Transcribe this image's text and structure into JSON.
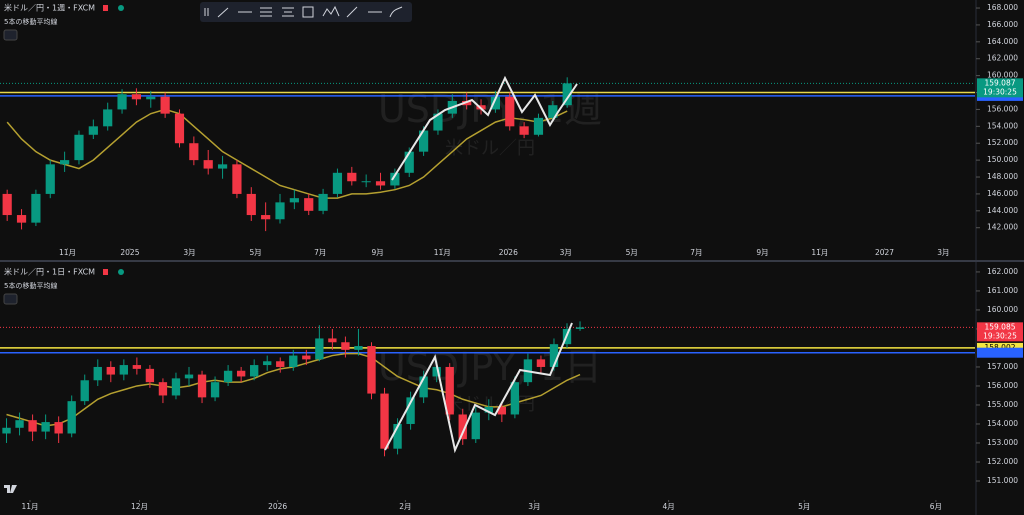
{
  "chart_data": [
    {
      "type": "candlestick",
      "title": "米ドル／円・1週・FXCM",
      "indicator": "5本の移動平均線",
      "watermark": "USDJPY, 1週",
      "watermark_sub": "米ドル／円",
      "up_color": "#089981",
      "down_color": "#f23645",
      "xlim": [
        -0.5,
        67.4
      ],
      "ylim": [
        139.6,
        168.95
      ],
      "yticks": [
        {
          "value": 168,
          "label": "168.000"
        },
        {
          "value": 166,
          "label": "166.000"
        },
        {
          "value": 164,
          "label": "164.000"
        },
        {
          "value": 162,
          "label": "162.000"
        },
        {
          "value": 160,
          "label": "160.000"
        },
        {
          "value": 158,
          "label": "158.000"
        },
        {
          "value": 156,
          "label": "156.000"
        },
        {
          "value": 154,
          "label": "154.000"
        },
        {
          "value": 152,
          "label": "152.000"
        },
        {
          "value": 150,
          "label": "150.000"
        },
        {
          "value": 148,
          "label": "148.000"
        },
        {
          "value": 146,
          "label": "146.000"
        },
        {
          "value": 144,
          "label": "144.000"
        },
        {
          "value": 142,
          "label": "142.000"
        }
      ],
      "xticks": [
        {
          "value": 4.2,
          "label": "11月"
        },
        {
          "value": 8.55,
          "label": "2025"
        },
        {
          "value": 12.7,
          "label": "3月"
        },
        {
          "value": 17.3,
          "label": "5月"
        },
        {
          "value": 21.8,
          "label": "7月"
        },
        {
          "value": 25.8,
          "label": "9月"
        },
        {
          "value": 30.3,
          "label": "11月"
        },
        {
          "value": 34.9,
          "label": "2026"
        },
        {
          "value": 38.9,
          "label": "3月"
        },
        {
          "value": 43.5,
          "label": "5月"
        },
        {
          "value": 48.0,
          "label": "7月"
        },
        {
          "value": 52.6,
          "label": "9月"
        },
        {
          "value": 56.6,
          "label": "11月"
        },
        {
          "value": 61.1,
          "label": "2027"
        },
        {
          "value": 65.2,
          "label": "3月"
        }
      ],
      "ohlc": [
        [
          146,
          146.5,
          142.8,
          143.5
        ],
        [
          143.5,
          144.2,
          141.8,
          142.6
        ],
        [
          142.6,
          146.5,
          142.2,
          146
        ],
        [
          146,
          150,
          145.5,
          149.5
        ],
        [
          149.5,
          151,
          148.6,
          150
        ],
        [
          150,
          153.5,
          149.5,
          153
        ],
        [
          153,
          154.8,
          152.5,
          154
        ],
        [
          154,
          156.8,
          153.5,
          156
        ],
        [
          156,
          158.4,
          155.5,
          157.8
        ],
        [
          157.8,
          158.5,
          156.5,
          157.2
        ],
        [
          157.2,
          158.2,
          156.2,
          157.5
        ],
        [
          157.5,
          158,
          155,
          155.5
        ],
        [
          155.5,
          156,
          151.5,
          152
        ],
        [
          152,
          152.8,
          149.4,
          150
        ],
        [
          150,
          151.2,
          148.3,
          149
        ],
        [
          149,
          150.5,
          147.8,
          149.5
        ],
        [
          149.5,
          150,
          145.5,
          146
        ],
        [
          146,
          146.8,
          142.8,
          143.5
        ],
        [
          143.5,
          145,
          141.6,
          143
        ],
        [
          143,
          146,
          142.5,
          145
        ],
        [
          145,
          146.5,
          144.2,
          145.5
        ],
        [
          145.5,
          146,
          143.5,
          144
        ],
        [
          144,
          146.6,
          143.6,
          146
        ],
        [
          146,
          149,
          145.6,
          148.5
        ],
        [
          148.5,
          149.2,
          147,
          147.5
        ],
        [
          147.5,
          148.3,
          146.8,
          147.5
        ],
        [
          147.5,
          148.5,
          146.5,
          147
        ],
        [
          147,
          149,
          146.6,
          148.5
        ],
        [
          148.5,
          151.5,
          148,
          151
        ],
        [
          151,
          154,
          150.5,
          153.5
        ],
        [
          153.5,
          156,
          153,
          155.5
        ],
        [
          155.5,
          157.8,
          155,
          157
        ],
        [
          157,
          158,
          156,
          156.5
        ],
        [
          156.5,
          157.2,
          155.4,
          156
        ],
        [
          156,
          158.2,
          155.6,
          157.5
        ],
        [
          157.5,
          158,
          153.5,
          154
        ],
        [
          154,
          154.5,
          152.6,
          153
        ],
        [
          153,
          155.5,
          152.8,
          155
        ],
        [
          155,
          157,
          154.6,
          156.5
        ],
        [
          156.5,
          159.8,
          156.2,
          159.087
        ]
      ],
      "ma": {
        "color": "#b5a030",
        "values": [
          154.5,
          152.5,
          151,
          150,
          149.5,
          149,
          150,
          151.5,
          153,
          154.5,
          155.5,
          156,
          155.5,
          154,
          152.5,
          151,
          150,
          149,
          148,
          147,
          146.5,
          146,
          145.5,
          145.5,
          146,
          146,
          146.2,
          146.5,
          147,
          148,
          149.5,
          151,
          152.5,
          153.5,
          154.5,
          155,
          154.8,
          154.5,
          155,
          155.8
        ]
      },
      "hlines": [
        {
          "value": 158.0,
          "color": "#e8d84a"
        },
        {
          "value": 157.6,
          "color": "#2962ff"
        }
      ],
      "last_price": {
        "value": 159.087,
        "countdown": "19:30:25",
        "color": "#089981"
      }
    },
    {
      "type": "candlestick",
      "title": "米ドル／円・1日・FXCM",
      "indicator": "5本の移動平均線",
      "watermark": "USDJPY, 1日",
      "watermark_sub": "米ドル／円",
      "up_color": "#089981",
      "down_color": "#f23645",
      "xlim": [
        -0.5,
        74.3
      ],
      "ylim": [
        150.0,
        162.47
      ],
      "yticks": [
        {
          "value": 162,
          "label": "162.000"
        },
        {
          "value": 161,
          "label": "161.000"
        },
        {
          "value": 160,
          "label": "160.000"
        },
        {
          "value": 159,
          "label": "159.000"
        },
        {
          "value": 157,
          "label": "157.000"
        },
        {
          "value": 156,
          "label": "156.000"
        },
        {
          "value": 155,
          "label": "155.000"
        },
        {
          "value": 154,
          "label": "154.000"
        },
        {
          "value": 153,
          "label": "153.000"
        },
        {
          "value": 152,
          "label": "152.000"
        },
        {
          "value": 151,
          "label": "151.000"
        }
      ],
      "xticks": [
        {
          "value": 1.8,
          "label": "11月"
        },
        {
          "value": 10.2,
          "label": "12月"
        },
        {
          "value": 20.8,
          "label": "2026"
        },
        {
          "value": 30.6,
          "label": "2月"
        },
        {
          "value": 40.5,
          "label": "3月"
        },
        {
          "value": 50.8,
          "label": "4月"
        },
        {
          "value": 61.2,
          "label": "5月"
        },
        {
          "value": 71.3,
          "label": "6月"
        }
      ],
      "ohlc": [
        [
          153.5,
          154.3,
          153.0,
          153.8
        ],
        [
          153.8,
          154.6,
          153.4,
          154.2
        ],
        [
          154.2,
          154.5,
          153.1,
          153.6
        ],
        [
          153.6,
          154.5,
          153.2,
          154.1
        ],
        [
          154.1,
          154.4,
          153.0,
          153.5
        ],
        [
          153.5,
          155.5,
          153.3,
          155.2
        ],
        [
          155.2,
          156.6,
          155.0,
          156.3
        ],
        [
          156.3,
          157.4,
          156.0,
          157.0
        ],
        [
          157.0,
          157.3,
          156.2,
          156.6
        ],
        [
          156.6,
          157.4,
          156.3,
          157.1
        ],
        [
          157.1,
          157.5,
          156.6,
          156.9
        ],
        [
          156.9,
          157.1,
          155.9,
          156.2
        ],
        [
          156.2,
          156.4,
          155.1,
          155.5
        ],
        [
          155.5,
          156.7,
          155.3,
          156.4
        ],
        [
          156.4,
          157.0,
          156.0,
          156.6
        ],
        [
          156.6,
          156.8,
          155.1,
          155.4
        ],
        [
          155.4,
          156.5,
          155.2,
          156.2
        ],
        [
          156.2,
          157.1,
          156.0,
          156.8
        ],
        [
          156.8,
          157.0,
          156.2,
          156.5
        ],
        [
          156.5,
          157.4,
          156.3,
          157.1
        ],
        [
          157.1,
          157.6,
          156.8,
          157.3
        ],
        [
          157.3,
          157.5,
          156.7,
          157.0
        ],
        [
          157.0,
          157.9,
          156.8,
          157.6
        ],
        [
          157.6,
          157.9,
          157.1,
          157.4
        ],
        [
          157.4,
          159.2,
          157.3,
          158.5
        ],
        [
          158.5,
          159.0,
          157.9,
          158.3
        ],
        [
          158.3,
          158.6,
          157.5,
          157.9
        ],
        [
          157.9,
          159.0,
          157.6,
          158.1
        ],
        [
          158.1,
          158.3,
          155.3,
          155.6
        ],
        [
          155.6,
          155.9,
          152.3,
          152.7
        ],
        [
          152.7,
          154.3,
          152.4,
          154.0
        ],
        [
          154.0,
          155.7,
          153.7,
          155.4
        ],
        [
          155.4,
          156.8,
          155.1,
          156.5
        ],
        [
          156.5,
          157.3,
          156.2,
          157.0
        ],
        [
          157.0,
          157.2,
          154.2,
          154.5
        ],
        [
          154.5,
          154.8,
          152.9,
          153.2
        ],
        [
          153.2,
          154.9,
          153.0,
          154.6
        ],
        [
          154.6,
          155.3,
          154.2,
          154.9
        ],
        [
          154.9,
          155.1,
          154.1,
          154.5
        ],
        [
          154.5,
          156.5,
          154.3,
          156.2
        ],
        [
          156.2,
          157.7,
          156.0,
          157.4
        ],
        [
          157.4,
          157.6,
          156.7,
          157.0
        ],
        [
          157.0,
          158.5,
          156.8,
          158.2
        ],
        [
          158.2,
          159.3,
          158.0,
          159.0
        ],
        [
          159.0,
          159.4,
          158.9,
          159.085
        ]
      ],
      "ma": {
        "color": "#b5a030",
        "values": [
          154.5,
          154.3,
          154.1,
          153.9,
          154.0,
          154.3,
          154.8,
          155.3,
          155.6,
          155.8,
          156.0,
          156.1,
          156.0,
          155.9,
          156.0,
          156.2,
          156.3,
          156.2,
          156.2,
          156.4,
          156.7,
          156.9,
          157.0,
          157.2,
          157.4,
          157.6,
          157.7,
          157.7,
          157.5,
          157.0,
          156.5,
          156.2,
          155.9,
          155.8,
          155.6,
          155.3,
          155.1,
          154.9,
          154.9,
          155.1,
          155.3,
          155.5,
          155.9,
          156.3,
          156.6
        ]
      },
      "hlines": [
        {
          "value": 158.002,
          "color": "#f5e642",
          "label_shown": true
        },
        {
          "value": 157.75,
          "color": "#2962ff"
        }
      ],
      "last_price": {
        "value": 159.085,
        "countdown": "19:30:25",
        "color": "#f23645"
      }
    }
  ]
}
